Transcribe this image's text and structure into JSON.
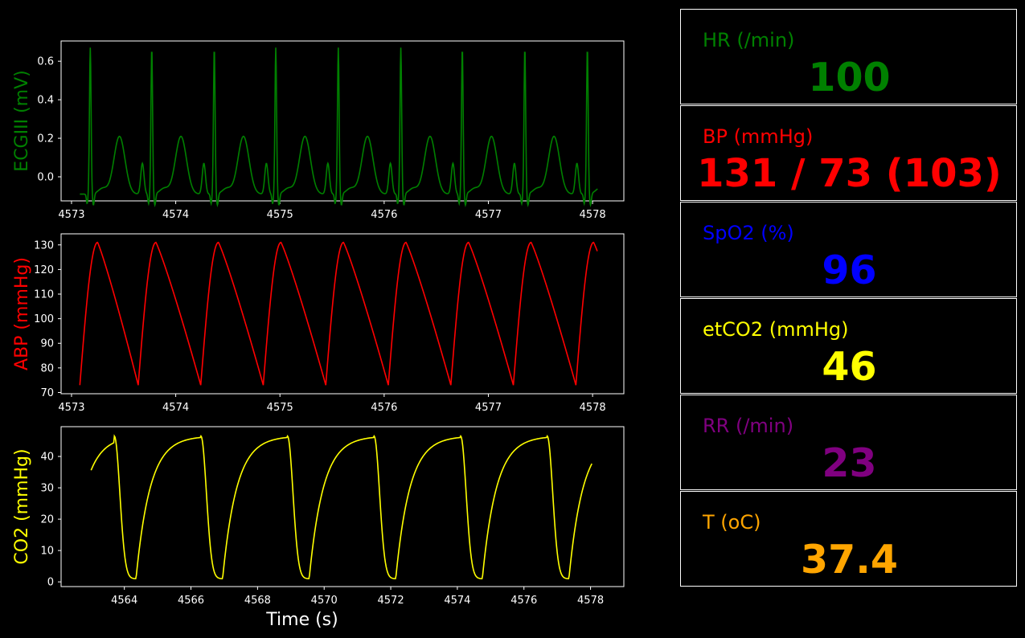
{
  "colors": {
    "green": "#008000",
    "red": "#ff0000",
    "blue": "#0000ff",
    "yellow": "#ffff00",
    "purple": "#800080",
    "orange": "#ffa500",
    "background": "#000000",
    "axis": "#ffffff"
  },
  "chart_data": [
    {
      "type": "line",
      "ylabel": "ECGIII (mV)",
      "xlabel": "",
      "color": "#008000",
      "xlim": [
        4572.9,
        4578.3
      ],
      "ylim": [
        -0.125,
        0.705
      ],
      "xticks": [
        4573,
        4574,
        4575,
        4576,
        4577,
        4578
      ],
      "yticks": [
        0.0,
        0.2,
        0.4,
        0.6
      ],
      "ytick_labels": [
        "0.0",
        "0.2",
        "0.4",
        "0.6"
      ],
      "beats": [
        4573.18,
        4573.77,
        4574.37,
        4574.96,
        4575.56,
        4576.16,
        4576.75,
        4577.35,
        4577.95
      ],
      "x_start": 4573.08,
      "x_end": 4578.05,
      "grid": false
    },
    {
      "type": "line",
      "ylabel": "ABP (mmHg)",
      "xlabel": "",
      "color": "#ff0000",
      "xlim": [
        4572.9,
        4578.3
      ],
      "ylim": [
        69.5,
        134.5
      ],
      "xticks": [
        4573,
        4574,
        4575,
        4576,
        4577,
        4578
      ],
      "yticks": [
        70,
        80,
        90,
        100,
        110,
        120,
        130
      ],
      "ytick_labels": [
        "70",
        "80",
        "90",
        "100",
        "110",
        "120",
        "130"
      ],
      "upstroke_starts": [
        4573.08,
        4573.64,
        4574.24,
        4574.84,
        4575.44,
        4576.04,
        4576.64,
        4577.24,
        4577.84
      ],
      "systolic": 131,
      "diastolic": 73,
      "x_end": 4578.05,
      "grid": false
    },
    {
      "type": "line",
      "ylabel": "CO2 (mmHg)",
      "xlabel": "Time (s)",
      "color": "#ffff00",
      "xlim": [
        4562.1,
        4579.0
      ],
      "ylim": [
        -1.5,
        49.5
      ],
      "xticks": [
        4564,
        4566,
        4568,
        4570,
        4572,
        4574,
        4576,
        4578
      ],
      "yticks": [
        0,
        10,
        20,
        30,
        40
      ],
      "ytick_labels": [
        "0",
        "10",
        "20",
        "30",
        "40"
      ],
      "drop_times": [
        4563.7,
        4566.3,
        4568.9,
        4571.5,
        4574.1,
        4576.7
      ],
      "rise_times": [
        4564.35,
        4566.95,
        4569.55,
        4572.15,
        4574.75,
        4577.35
      ],
      "x_start": 4563.0,
      "x_end": 4578.05,
      "plateau": 46.5,
      "grid": false
    }
  ],
  "vitals": [
    {
      "label": "HR (/min)",
      "value": "100",
      "color": "#008000"
    },
    {
      "label": "BP  (mmHg)",
      "value": "131 / 73 (103)",
      "color": "#ff0000"
    },
    {
      "label": "SpO2 (%)",
      "value": "96",
      "color": "#0000ff"
    },
    {
      "label": "etCO2 (mmHg)",
      "value": "46",
      "color": "#ffff00"
    },
    {
      "label": "RR (/min)",
      "value": "23",
      "color": "#800080"
    },
    {
      "label": "T (oC)",
      "value": "37.4",
      "color": "#ffa500"
    }
  ]
}
